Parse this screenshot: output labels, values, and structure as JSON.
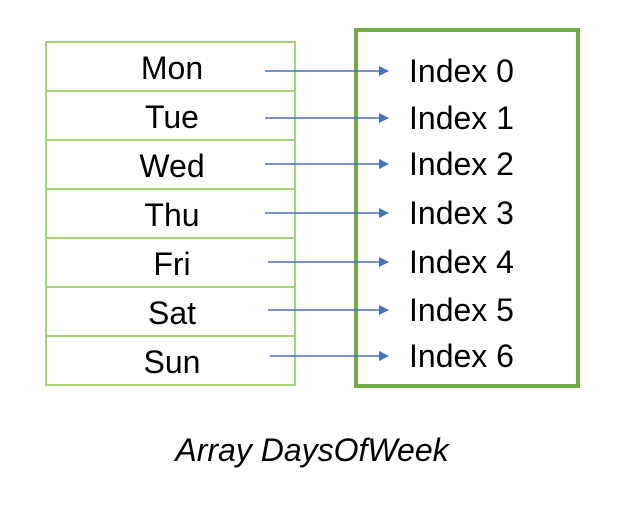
{
  "days": [
    "Mon",
    "Tue",
    "Wed",
    "Thu",
    "Fri",
    "Sat",
    "Sun"
  ],
  "indices": [
    "Index 0",
    "Index 1",
    "Index 2",
    "Index 3",
    "Index 4",
    "Index 5",
    "Index 6"
  ],
  "caption": "Array DaysOfWeek",
  "colors": {
    "cell_border": "#a6d27a",
    "index_box_border": "#70ad47",
    "arrow": "#4472c4",
    "text": "#000000"
  }
}
